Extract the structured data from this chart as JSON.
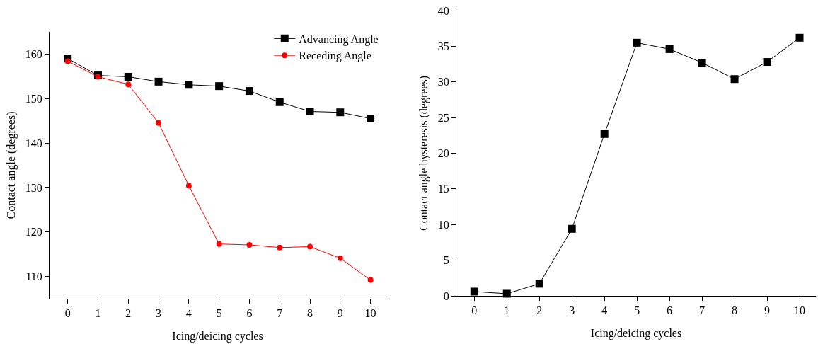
{
  "chart_data": [
    {
      "type": "line",
      "xlabel": "Icing/deicing cycles",
      "ylabel": "Contact angle (degrees)",
      "x": [
        0,
        1,
        2,
        3,
        4,
        5,
        6,
        7,
        8,
        9,
        10
      ],
      "xlim": [
        -0.6,
        10.5
      ],
      "xticks": [
        0,
        1,
        2,
        3,
        4,
        5,
        6,
        7,
        8,
        9,
        10
      ],
      "ylim": [
        105,
        165
      ],
      "yticks": [
        110,
        120,
        130,
        140,
        150,
        160
      ],
      "grid": false,
      "legend": "top right",
      "series": [
        {
          "name": "Advancing Angle",
          "color": "#000000",
          "marker": "square",
          "values": [
            159,
            155.2,
            154.9,
            153.8,
            153.1,
            152.8,
            151.7,
            149.2,
            147.1,
            146.9,
            145.5
          ]
        },
        {
          "name": "Receding Angle",
          "color": "#ff0000",
          "marker": "circle",
          "values": [
            158.4,
            154.9,
            153.2,
            144.5,
            130.4,
            117.3,
            117.1,
            116.5,
            116.7,
            114.1,
            109.2
          ]
        }
      ]
    },
    {
      "type": "line",
      "xlabel": "Icing/deicing cycles",
      "ylabel": "Contact angle hysteresis (degrees)",
      "x": [
        0,
        1,
        2,
        3,
        4,
        5,
        6,
        7,
        8,
        9,
        10
      ],
      "xlim": [
        -0.55,
        10.5
      ],
      "xticks": [
        0,
        1,
        2,
        3,
        4,
        5,
        6,
        7,
        8,
        9,
        10
      ],
      "ylim": [
        0,
        40
      ],
      "yticks": [
        0,
        5,
        10,
        15,
        20,
        25,
        30,
        35,
        40
      ],
      "grid": false,
      "series": [
        {
          "color": "#000000",
          "marker": "square",
          "values": [
            0.6,
            0.3,
            1.7,
            9.4,
            22.7,
            35.5,
            34.6,
            32.7,
            30.4,
            32.8,
            36.2
          ]
        }
      ]
    }
  ]
}
